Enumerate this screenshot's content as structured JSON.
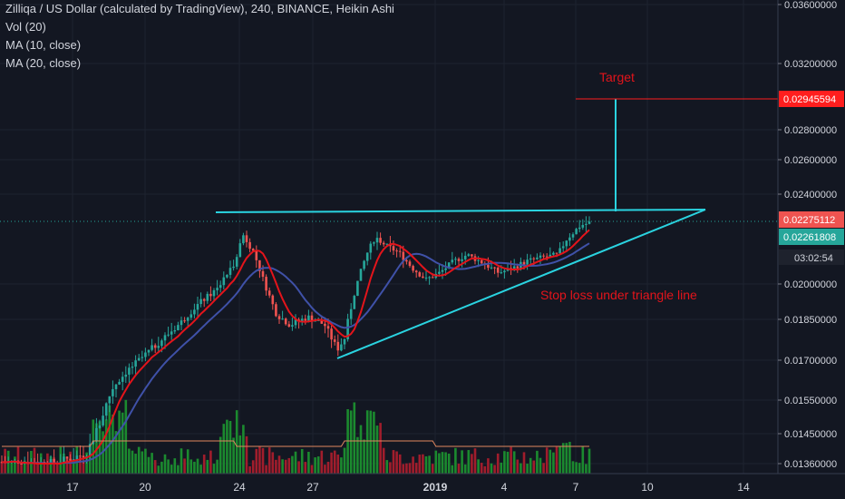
{
  "legend": {
    "title": "Zilliqa / US Dollar (calculated by TradingView), 240, BINANCE, Heikin Ashi",
    "vol": "Vol (20)",
    "ma10": "MA (10, close)",
    "ma20": "MA (20, close)"
  },
  "colors": {
    "background": "#131722",
    "up": "#26a69a",
    "down": "#ef5350",
    "vol_up": "#1b8a2f",
    "vol_down": "#a11d2c",
    "ma10": "#e3141b",
    "ma20": "#3f51a8",
    "vol_ma": "#e0875f",
    "triangle": "#2ad3e0",
    "annotation": "#e3141b",
    "last_price_badge": "#ef5350",
    "ma_badge": "#26a69a",
    "target_badge": "#ff1e1e"
  },
  "chart_data": {
    "type": "candlestick",
    "price_axis_ticks": [
      "0.03600000",
      "0.03200000",
      "0.02800000",
      "0.02600000",
      "0.02400000",
      "0.02000000",
      "0.01850000",
      "0.01700000",
      "0.01550000",
      "0.01450000",
      "0.01360000"
    ],
    "date_ticks": [
      "17",
      "20",
      "24",
      "27",
      "2019",
      "4",
      "7",
      "10",
      "14"
    ],
    "badges": {
      "target": "0.02945594",
      "last_price": "0.02275112",
      "ma_value": "0.02261808",
      "countdown": "03:02:54"
    },
    "annotations": {
      "target": "Target",
      "stop_loss": "Stop loss under triangle line"
    },
    "pattern": "ascending-triangle",
    "resistance_price": 0.0233,
    "support_from": 0.017,
    "apex_price": 0.0233,
    "target_price": 0.02945594,
    "last_price": 0.02275112
  }
}
